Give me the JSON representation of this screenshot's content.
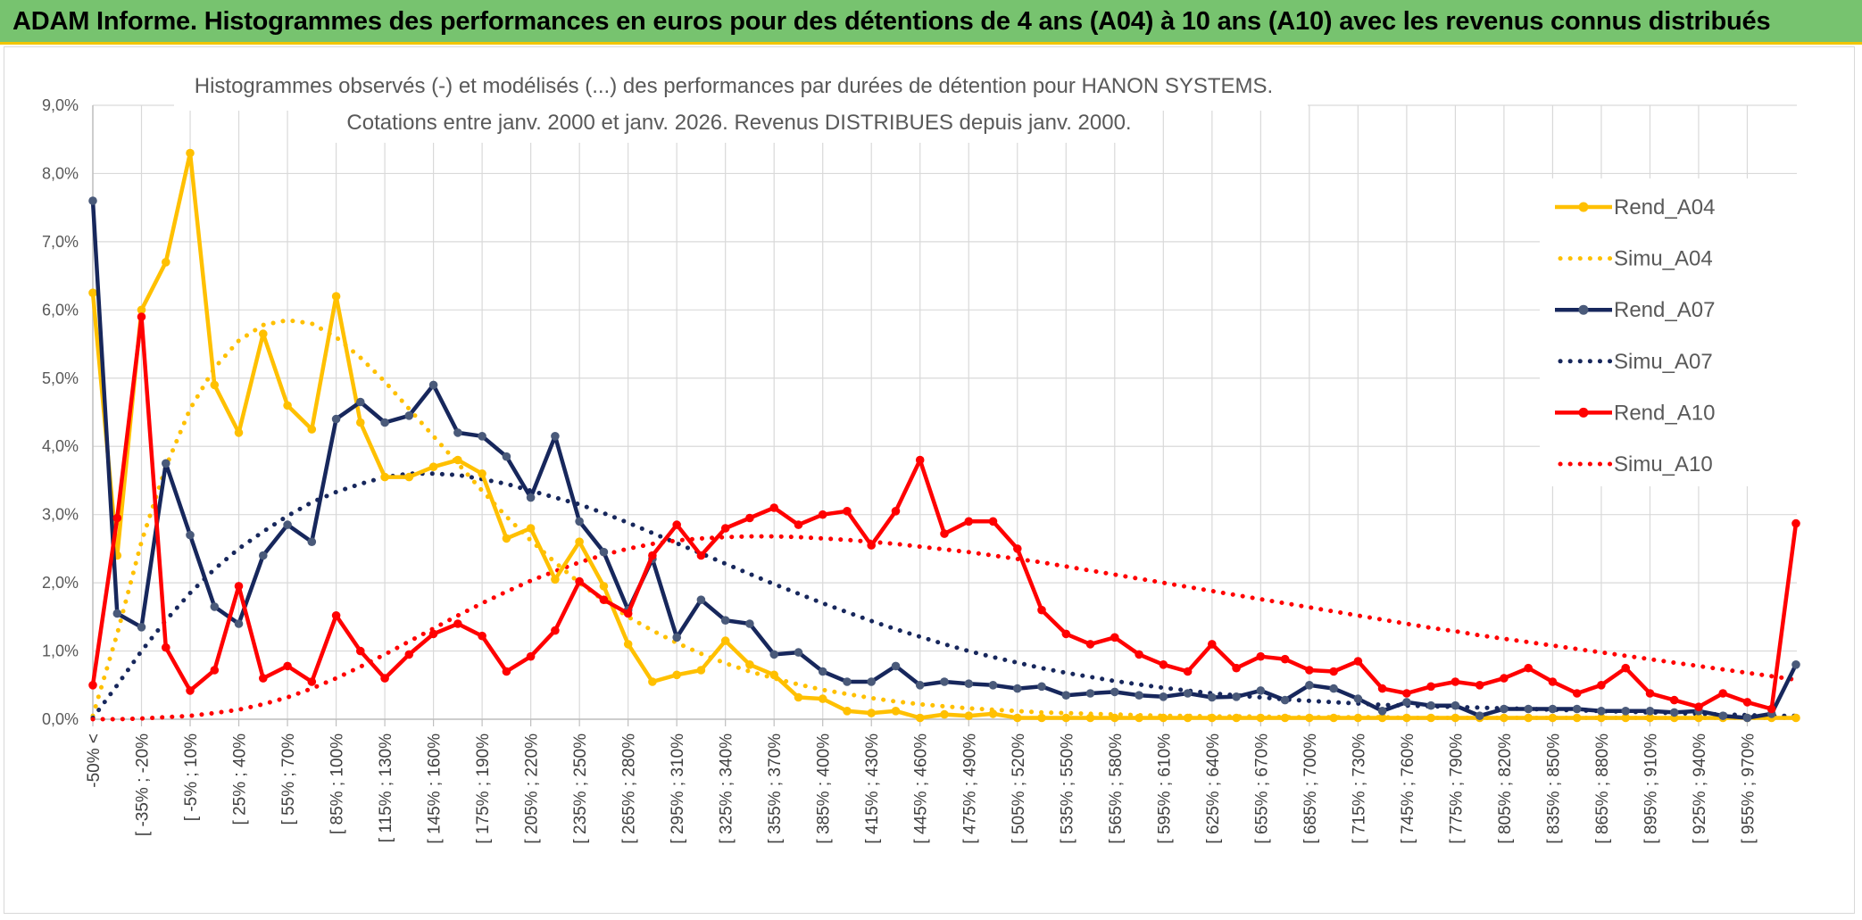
{
  "header": {
    "banner": "ADAM Informe. Histogrammes des performances en euros pour des détentions de 4 ans (A04) à 10 ans (A10) avec les revenus connus distribués"
  },
  "chart_data": {
    "type": "line",
    "title_line1": "Histogrammes observés (-) et modélisés (...) des performances par durées de détention pour HANON SYSTEMS.",
    "title_line2": "Cotations entre janv. 2000 et janv. 2026. Revenus DISTRIBUES depuis janv. 2000.",
    "ylim": [
      0,
      9
    ],
    "yticks": [
      "0,0%",
      "1,0%",
      "2,0%",
      "3,0%",
      "4,0%",
      "5,0%",
      "6,0%",
      "7,0%",
      "8,0%",
      "9,0%"
    ],
    "x_tick_labels": [
      "-50% <",
      "[ -35% ; -20%",
      "[ -5% ; 10%",
      "[ 25% ; 40%",
      "[ 55% ; 70%",
      "[ 85% ; 100%",
      "[ 115% ; 130%",
      "[ 145% ; 160%",
      "[ 175% ; 190%",
      "[ 205% ; 220%",
      "[ 235% ; 250%",
      "[ 265% ; 280%",
      "[ 295% ; 310%",
      "[ 325% ; 340%",
      "[ 355% ; 370%",
      "[ 385% ; 400%",
      "[ 415% ; 430%",
      "[ 445% ; 460%",
      "[ 475% ; 490%",
      "[ 505% ; 520%",
      "[ 535% ; 550%",
      "[ 565% ; 580%",
      "[ 595% ; 610%",
      "[ 625% ; 640%",
      "[ 655% ; 670%",
      "[ 685% ; 700%",
      "[ 715% ; 730%",
      "[ 745% ; 760%",
      "[ 775% ; 790%",
      "[ 805% ; 820%",
      "[ 835% ; 850%",
      "[ 865% ; 880%",
      "[ 895% ; 910%",
      "[ 925% ; 940%",
      "[ 955% ; 970%"
    ],
    "n_bins": 71,
    "legend_position": "right",
    "series": [
      {
        "name": "Rend_A04",
        "style": "solid",
        "color": "#ffc000",
        "values": [
          6.25,
          2.4,
          6.0,
          6.7,
          8.3,
          4.9,
          4.2,
          5.65,
          4.6,
          4.25,
          6.2,
          4.35,
          3.55,
          3.55,
          3.7,
          3.8,
          3.6,
          2.65,
          2.8,
          2.05,
          2.6,
          1.95,
          1.1,
          0.55,
          0.65,
          0.72,
          1.15,
          0.8,
          0.65,
          0.32,
          0.3,
          0.12,
          0.09,
          0.12,
          0.02,
          0.07,
          0.05,
          0.08,
          0.02,
          0.02,
          0.02,
          0.02,
          0.02,
          0.02,
          0.02,
          0.02,
          0.02,
          0.02,
          0.02,
          0.02,
          0.02,
          0.02,
          0.02,
          0.02,
          0.02,
          0.02,
          0.02,
          0.02,
          0.02,
          0.02,
          0.02,
          0.02,
          0.02,
          0.02,
          0.02,
          0.02,
          0.02,
          0.02,
          0.02,
          0.02,
          0.02
        ]
      },
      {
        "name": "Simu_A04",
        "style": "dotted",
        "color": "#ffc000",
        "values": [
          0.05,
          1.25,
          2.6,
          3.7,
          4.55,
          5.15,
          5.55,
          5.78,
          5.85,
          5.8,
          5.6,
          5.3,
          4.95,
          4.55,
          4.15,
          3.75,
          3.35,
          2.97,
          2.62,
          2.3,
          2.0,
          1.74,
          1.5,
          1.3,
          1.12,
          0.96,
          0.82,
          0.7,
          0.6,
          0.51,
          0.43,
          0.37,
          0.31,
          0.26,
          0.22,
          0.19,
          0.16,
          0.14,
          0.12,
          0.1,
          0.09,
          0.08,
          0.07,
          0.06,
          0.05,
          0.05,
          0.04,
          0.04,
          0.04,
          0.03,
          0.03,
          0.03,
          0.03,
          0.03,
          0.02,
          0.02,
          0.02,
          0.02,
          0.02,
          0.02,
          0.02,
          0.02,
          0.02,
          0.02,
          0.02,
          0.02,
          0.02,
          0.02,
          0.02,
          0.02,
          0.02
        ]
      },
      {
        "name": "Rend_A07",
        "style": "solid",
        "color": "#17275c",
        "values": [
          7.6,
          1.55,
          1.35,
          3.75,
          2.7,
          1.65,
          1.4,
          2.4,
          2.85,
          2.6,
          4.4,
          4.65,
          4.35,
          4.45,
          4.9,
          4.2,
          4.15,
          3.85,
          3.25,
          4.15,
          2.9,
          2.45,
          1.6,
          2.35,
          1.2,
          1.75,
          1.45,
          1.4,
          0.95,
          0.98,
          0.7,
          0.55,
          0.55,
          0.78,
          0.5,
          0.55,
          0.52,
          0.5,
          0.45,
          0.48,
          0.35,
          0.38,
          0.4,
          0.35,
          0.33,
          0.38,
          0.32,
          0.33,
          0.42,
          0.28,
          0.5,
          0.45,
          0.3,
          0.12,
          0.25,
          0.2,
          0.2,
          0.05,
          0.15,
          0.15,
          0.15,
          0.15,
          0.12,
          0.12,
          0.12,
          0.1,
          0.12,
          0.05,
          0.02,
          0.08,
          0.8
        ]
      },
      {
        "name": "Simu_A07",
        "style": "dotted",
        "color": "#17275c",
        "values": [
          0.02,
          0.5,
          1.0,
          1.45,
          1.85,
          2.2,
          2.5,
          2.75,
          2.98,
          3.18,
          3.33,
          3.45,
          3.55,
          3.6,
          3.6,
          3.58,
          3.52,
          3.45,
          3.35,
          3.25,
          3.15,
          3.02,
          2.88,
          2.73,
          2.58,
          2.43,
          2.28,
          2.13,
          1.98,
          1.84,
          1.7,
          1.57,
          1.44,
          1.32,
          1.21,
          1.1,
          1.0,
          0.91,
          0.83,
          0.75,
          0.68,
          0.62,
          0.56,
          0.51,
          0.46,
          0.42,
          0.38,
          0.35,
          0.32,
          0.29,
          0.27,
          0.25,
          0.23,
          0.21,
          0.2,
          0.19,
          0.18,
          0.17,
          0.16,
          0.15,
          0.14,
          0.13,
          0.12,
          0.11,
          0.1,
          0.09,
          0.08,
          0.07,
          0.06,
          0.05,
          0.05
        ]
      },
      {
        "name": "Rend_A10",
        "style": "solid",
        "color": "#ff0000",
        "values": [
          0.5,
          2.95,
          5.9,
          1.05,
          0.42,
          0.72,
          1.95,
          0.6,
          0.78,
          0.55,
          1.52,
          1.0,
          0.6,
          0.95,
          1.25,
          1.4,
          1.22,
          0.7,
          0.92,
          1.3,
          2.02,
          1.75,
          1.55,
          2.4,
          2.85,
          2.4,
          2.8,
          2.95,
          3.1,
          2.85,
          3.0,
          3.05,
          2.55,
          3.05,
          3.8,
          2.72,
          2.9,
          2.9,
          2.5,
          1.6,
          1.25,
          1.1,
          1.2,
          0.95,
          0.8,
          0.7,
          1.1,
          0.75,
          0.92,
          0.88,
          0.72,
          0.7,
          0.85,
          0.45,
          0.38,
          0.48,
          0.55,
          0.5,
          0.6,
          0.75,
          0.55,
          0.38,
          0.5,
          0.75,
          0.38,
          0.28,
          0.18,
          0.38,
          0.25,
          0.15,
          2.87
        ]
      },
      {
        "name": "Simu_A10",
        "style": "dotted",
        "color": "#ff0000",
        "values": [
          0.0,
          0.0,
          0.01,
          0.03,
          0.05,
          0.09,
          0.14,
          0.22,
          0.32,
          0.45,
          0.6,
          0.77,
          0.95,
          1.14,
          1.33,
          1.52,
          1.7,
          1.87,
          2.03,
          2.17,
          2.3,
          2.41,
          2.5,
          2.57,
          2.62,
          2.65,
          2.67,
          2.68,
          2.68,
          2.67,
          2.65,
          2.63,
          2.6,
          2.57,
          2.53,
          2.49,
          2.45,
          2.4,
          2.35,
          2.3,
          2.24,
          2.18,
          2.12,
          2.06,
          2.0,
          1.94,
          1.88,
          1.82,
          1.76,
          1.7,
          1.64,
          1.58,
          1.52,
          1.46,
          1.4,
          1.34,
          1.29,
          1.23,
          1.18,
          1.13,
          1.08,
          1.03,
          0.98,
          0.93,
          0.88,
          0.83,
          0.78,
          0.73,
          0.68,
          0.63,
          0.58
        ]
      }
    ]
  }
}
